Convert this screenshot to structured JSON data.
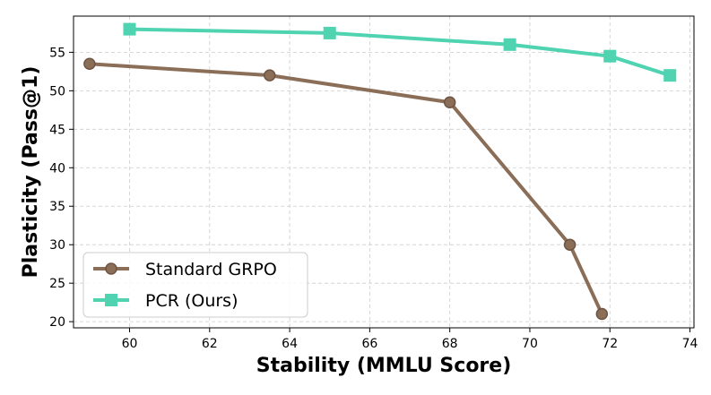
{
  "chart_data": {
    "type": "line",
    "title": "",
    "xlabel": "Stability (MMLU Score)",
    "ylabel": "Plasticity (Pass@1)",
    "xlim": [
      58.6,
      74.1
    ],
    "ylim": [
      19.2,
      59.7
    ],
    "xticks": [
      60,
      62,
      64,
      66,
      68,
      70,
      72,
      74
    ],
    "yticks": [
      20,
      25,
      30,
      35,
      40,
      45,
      50,
      55
    ],
    "grid": true,
    "legend_position": "bottom-left",
    "series": [
      {
        "name": "Standard GRPO",
        "color": "#8b6e58",
        "marker": "circle",
        "x": [
          59.0,
          63.5,
          68.0,
          71.0,
          71.8
        ],
        "y": [
          53.5,
          52.0,
          48.5,
          30.0,
          21.0
        ]
      },
      {
        "name": "PCR (Ours)",
        "color": "#4fd3b1",
        "marker": "square",
        "x": [
          60.0,
          65.0,
          69.5,
          72.0,
          73.5
        ],
        "y": [
          58.0,
          57.5,
          56.0,
          54.5,
          52.0
        ]
      }
    ]
  }
}
